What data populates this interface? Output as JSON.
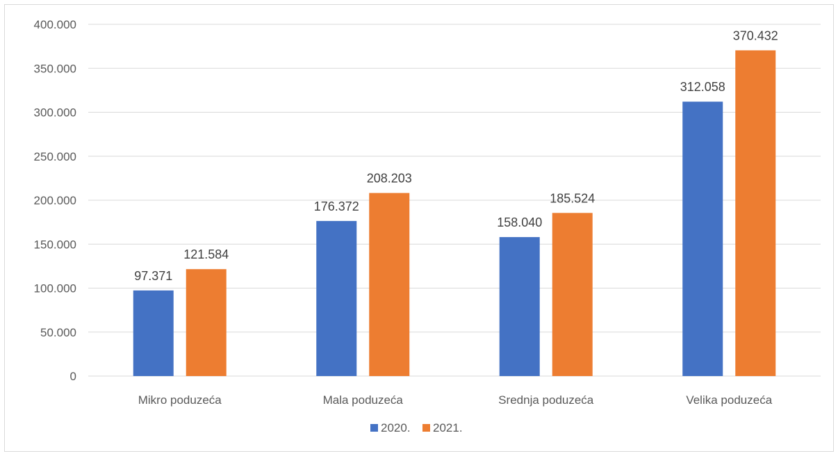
{
  "chart_data": {
    "type": "bar",
    "title": "",
    "xlabel": "",
    "ylabel": "",
    "categories": [
      "Mikro poduzeća",
      "Mala poduzeća",
      "Srednja poduzeća",
      "Velika poduzeća"
    ],
    "series": [
      {
        "name": "2020.",
        "color": "#4472c4",
        "values": [
          97371,
          176372,
          158040,
          312058
        ],
        "labels": [
          "97.371",
          "176.372",
          "158.040",
          "312.058"
        ]
      },
      {
        "name": "2021.",
        "color": "#ed7d31",
        "values": [
          121584,
          208203,
          185524,
          370432
        ],
        "labels": [
          "121.584",
          "208.203",
          "185.524",
          "370.432"
        ]
      }
    ],
    "ylim": [
      0,
      400000
    ],
    "yticks": [
      {
        "value": 0,
        "label": "0"
      },
      {
        "value": 50000,
        "label": "50.000"
      },
      {
        "value": 100000,
        "label": "100.000"
      },
      {
        "value": 150000,
        "label": "150.000"
      },
      {
        "value": 200000,
        "label": "200.000"
      },
      {
        "value": 250000,
        "label": "250.000"
      },
      {
        "value": 300000,
        "label": "300.000"
      },
      {
        "value": 350000,
        "label": "350.000"
      },
      {
        "value": 400000,
        "label": "400.000"
      }
    ],
    "grid": true,
    "legend_position": "bottom",
    "gridline_color": "#d9d9d9"
  }
}
